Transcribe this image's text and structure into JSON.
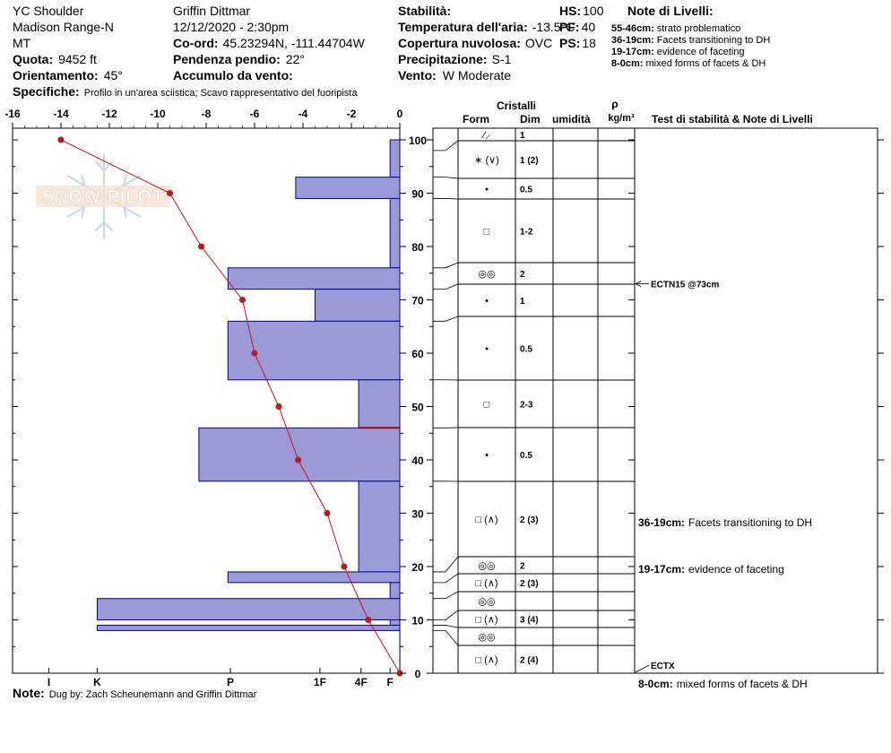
{
  "header": {
    "location": "YC Shoulder",
    "range": "Madison Range-N",
    "state": "MT",
    "observer": "Griffin Dittmar",
    "datetime": "12/12/2020 - 2:30pm",
    "quota_label": "Quota:",
    "quota_value": "9452 ft",
    "orient_label": "Orientamento:",
    "orient_value": "45°",
    "coord_label": "Co-ord:",
    "coord_value": "45.23294N, -111.44704W",
    "slope_label": "Pendenza pendio:",
    "slope_value": "22°",
    "wind_load_label": "Accumulo da vento:",
    "stability_label": "Stabilità:",
    "air_temp_label": "Temperatura dell'aria:",
    "air_temp_value": "-13.5°C",
    "cloud_label": "Copertura nuvolosa:",
    "cloud_value": "OVC",
    "precip_label": "Precipitazione:",
    "precip_value": "S-1",
    "wind_label": "Vento:",
    "wind_value": "W Moderate",
    "hs_label": "HS:",
    "hs_value": "100",
    "pf_label": "PF:",
    "pf_value": "40",
    "ps_label": "PS:",
    "ps_value": "18",
    "notes_title": "Note di Livelli:",
    "layer_notes": [
      {
        "range": "55-46cm:",
        "text": "strato problematico"
      },
      {
        "range": "36-19cm:",
        "text": "Facets transitioning to DH"
      },
      {
        "range": "19-17cm:",
        "text": "evidence of faceting"
      },
      {
        "range": "8-0cm:",
        "text": "mixed forms of facets & DH"
      }
    ],
    "specifics_label": "Specifiche:",
    "specifics_value": "Profilo in un'area sciistica; Scavo rappresentativo del fuoripista"
  },
  "footer": {
    "note_label": "Note:",
    "note_value": "Dug by: Zach Scheunemann and Griffin Dittmar"
  },
  "watermark": {
    "text": "SNOW PILOT",
    "icon": "snowflake-icon"
  },
  "table": {
    "title": "Cristalli",
    "col_form": "Form",
    "col_dim": "Dim",
    "col_moisture": "umidità",
    "col_density_symbol": "ρ",
    "col_density_unit": "kg/m³",
    "col_notes": "Test di stabilità & Note di Livelli"
  },
  "chart_data": {
    "type": "bar",
    "temp_axis": {
      "ticks": [
        -16,
        -14,
        -12,
        -10,
        -8,
        -6,
        -4,
        -2,
        0
      ],
      "range": [
        -16,
        0
      ]
    },
    "depth_axis": {
      "ticks": [
        0,
        10,
        20,
        30,
        40,
        50,
        60,
        70,
        80,
        90,
        100
      ],
      "range": [
        0,
        100
      ]
    },
    "hardness_axis": {
      "ticks": [
        "I",
        "K",
        "P",
        "1F",
        "4F",
        "F"
      ],
      "values": [
        -14.5,
        -12.5,
        -7,
        -3.3,
        -1.6,
        -0.4
      ]
    },
    "hardness_profile": [
      {
        "bottom": 93,
        "top": 100,
        "temp_equiv": -0.4
      },
      {
        "bottom": 89,
        "top": 93,
        "temp_equiv": -4.3
      },
      {
        "bottom": 76,
        "top": 89,
        "temp_equiv": -0.4
      },
      {
        "bottom": 72,
        "top": 76,
        "temp_equiv": -7.1
      },
      {
        "bottom": 66,
        "top": 72,
        "temp_equiv": -3.5
      },
      {
        "bottom": 55,
        "top": 66,
        "temp_equiv": -7.1
      },
      {
        "bottom": 46,
        "top": 55,
        "temp_equiv": -1.7
      },
      {
        "bottom": 36,
        "top": 46,
        "temp_equiv": -8.3
      },
      {
        "bottom": 19,
        "top": 36,
        "temp_equiv": -1.7
      },
      {
        "bottom": 17,
        "top": 19,
        "temp_equiv": -7.1
      },
      {
        "bottom": 14,
        "top": 17,
        "temp_equiv": -0.4
      },
      {
        "bottom": 10,
        "top": 14,
        "temp_equiv": -12.5
      },
      {
        "bottom": 9,
        "top": 10,
        "temp_equiv": -0.4
      },
      {
        "bottom": 8,
        "top": 9,
        "temp_equiv": -12.5
      },
      {
        "bottom": 0,
        "top": 8,
        "temp_equiv": 0
      }
    ],
    "problem_layer_marker": {
      "depth": 46,
      "range": [
        -1.7,
        0
      ]
    },
    "temperature_profile": [
      {
        "depth": 100,
        "temp": -14
      },
      {
        "depth": 90,
        "temp": -9.5
      },
      {
        "depth": 80,
        "temp": -8.2
      },
      {
        "depth": 70,
        "temp": -6.5
      },
      {
        "depth": 60,
        "temp": -6.0
      },
      {
        "depth": 50,
        "temp": -5.0
      },
      {
        "depth": 40,
        "temp": -4.2
      },
      {
        "depth": 30,
        "temp": -3.0
      },
      {
        "depth": 20,
        "temp": -2.3
      },
      {
        "depth": 10,
        "temp": -1.3
      },
      {
        "depth": 0,
        "temp": 0
      }
    ],
    "layers": [
      {
        "top": 100,
        "bottom": 98,
        "form": "⁄⸝",
        "dim": "1",
        "line_y": 157
      },
      {
        "top": 98,
        "bottom": 93,
        "form": "∗ (∨)",
        "dim": "1 (2)",
        "line_y": 199
      },
      {
        "top": 93,
        "bottom": 89,
        "form": "•",
        "dim": "0.5",
        "line_y": 222
      },
      {
        "top": 89,
        "bottom": 76,
        "form": "□",
        "dim": "1-2",
        "line_y": 293
      },
      {
        "top": 76,
        "bottom": 72,
        "form": "◎◎",
        "dim": "2",
        "line_y": 317
      },
      {
        "top": 72,
        "bottom": 66,
        "form": "•",
        "dim": "1",
        "line_y": 353
      },
      {
        "top": 66,
        "bottom": 55,
        "form": "•",
        "dim": "0.5",
        "line_y": 424
      },
      {
        "top": 55,
        "bottom": 46,
        "form": "□",
        "dim": "2-3",
        "line_y": 477
      },
      {
        "top": 46,
        "bottom": 36,
        "form": "•",
        "dim": "0.5",
        "line_y": 537
      },
      {
        "top": 36,
        "bottom": 19,
        "form": "□ (∧)",
        "dim": "2 (3)",
        "line_y": 621
      },
      {
        "top": 19,
        "bottom": 17,
        "form": "◎◎",
        "dim": "2",
        "line_y": 640
      },
      {
        "top": 17,
        "bottom": 14,
        "form": "□ (∧)",
        "dim": "2 (3)",
        "line_y": 660
      },
      {
        "top": 14,
        "bottom": 10,
        "form": "◎◎",
        "dim": "",
        "line_y": 681
      },
      {
        "top": 10,
        "bottom": 9,
        "form": "□ (∧)",
        "dim": "3 (4)",
        "line_y": 700
      },
      {
        "top": 9,
        "bottom": 8,
        "form": "◎◎",
        "dim": "",
        "line_y": 720
      },
      {
        "top": 8,
        "bottom": 0,
        "form": "□ (∧)",
        "dim": "2 (4)",
        "line_y": 751
      }
    ],
    "stability_tests": [
      {
        "label": "ECTN15 @73cm",
        "depth": 73
      },
      {
        "label": "ECTX",
        "depth": 0
      }
    ],
    "layer_annotations": [
      {
        "range": "36-19cm:",
        "text": "Facets transitioning to DH"
      },
      {
        "range": "19-17cm:",
        "text": "evidence of faceting"
      },
      {
        "range": "8-0cm:",
        "text": "mixed forms of facets & DH"
      }
    ],
    "colors": {
      "bar_fill": "#9a9ad6",
      "bar_stroke": "#0000a0",
      "temp_line": "#c01818",
      "marker": "#b00000"
    }
  }
}
